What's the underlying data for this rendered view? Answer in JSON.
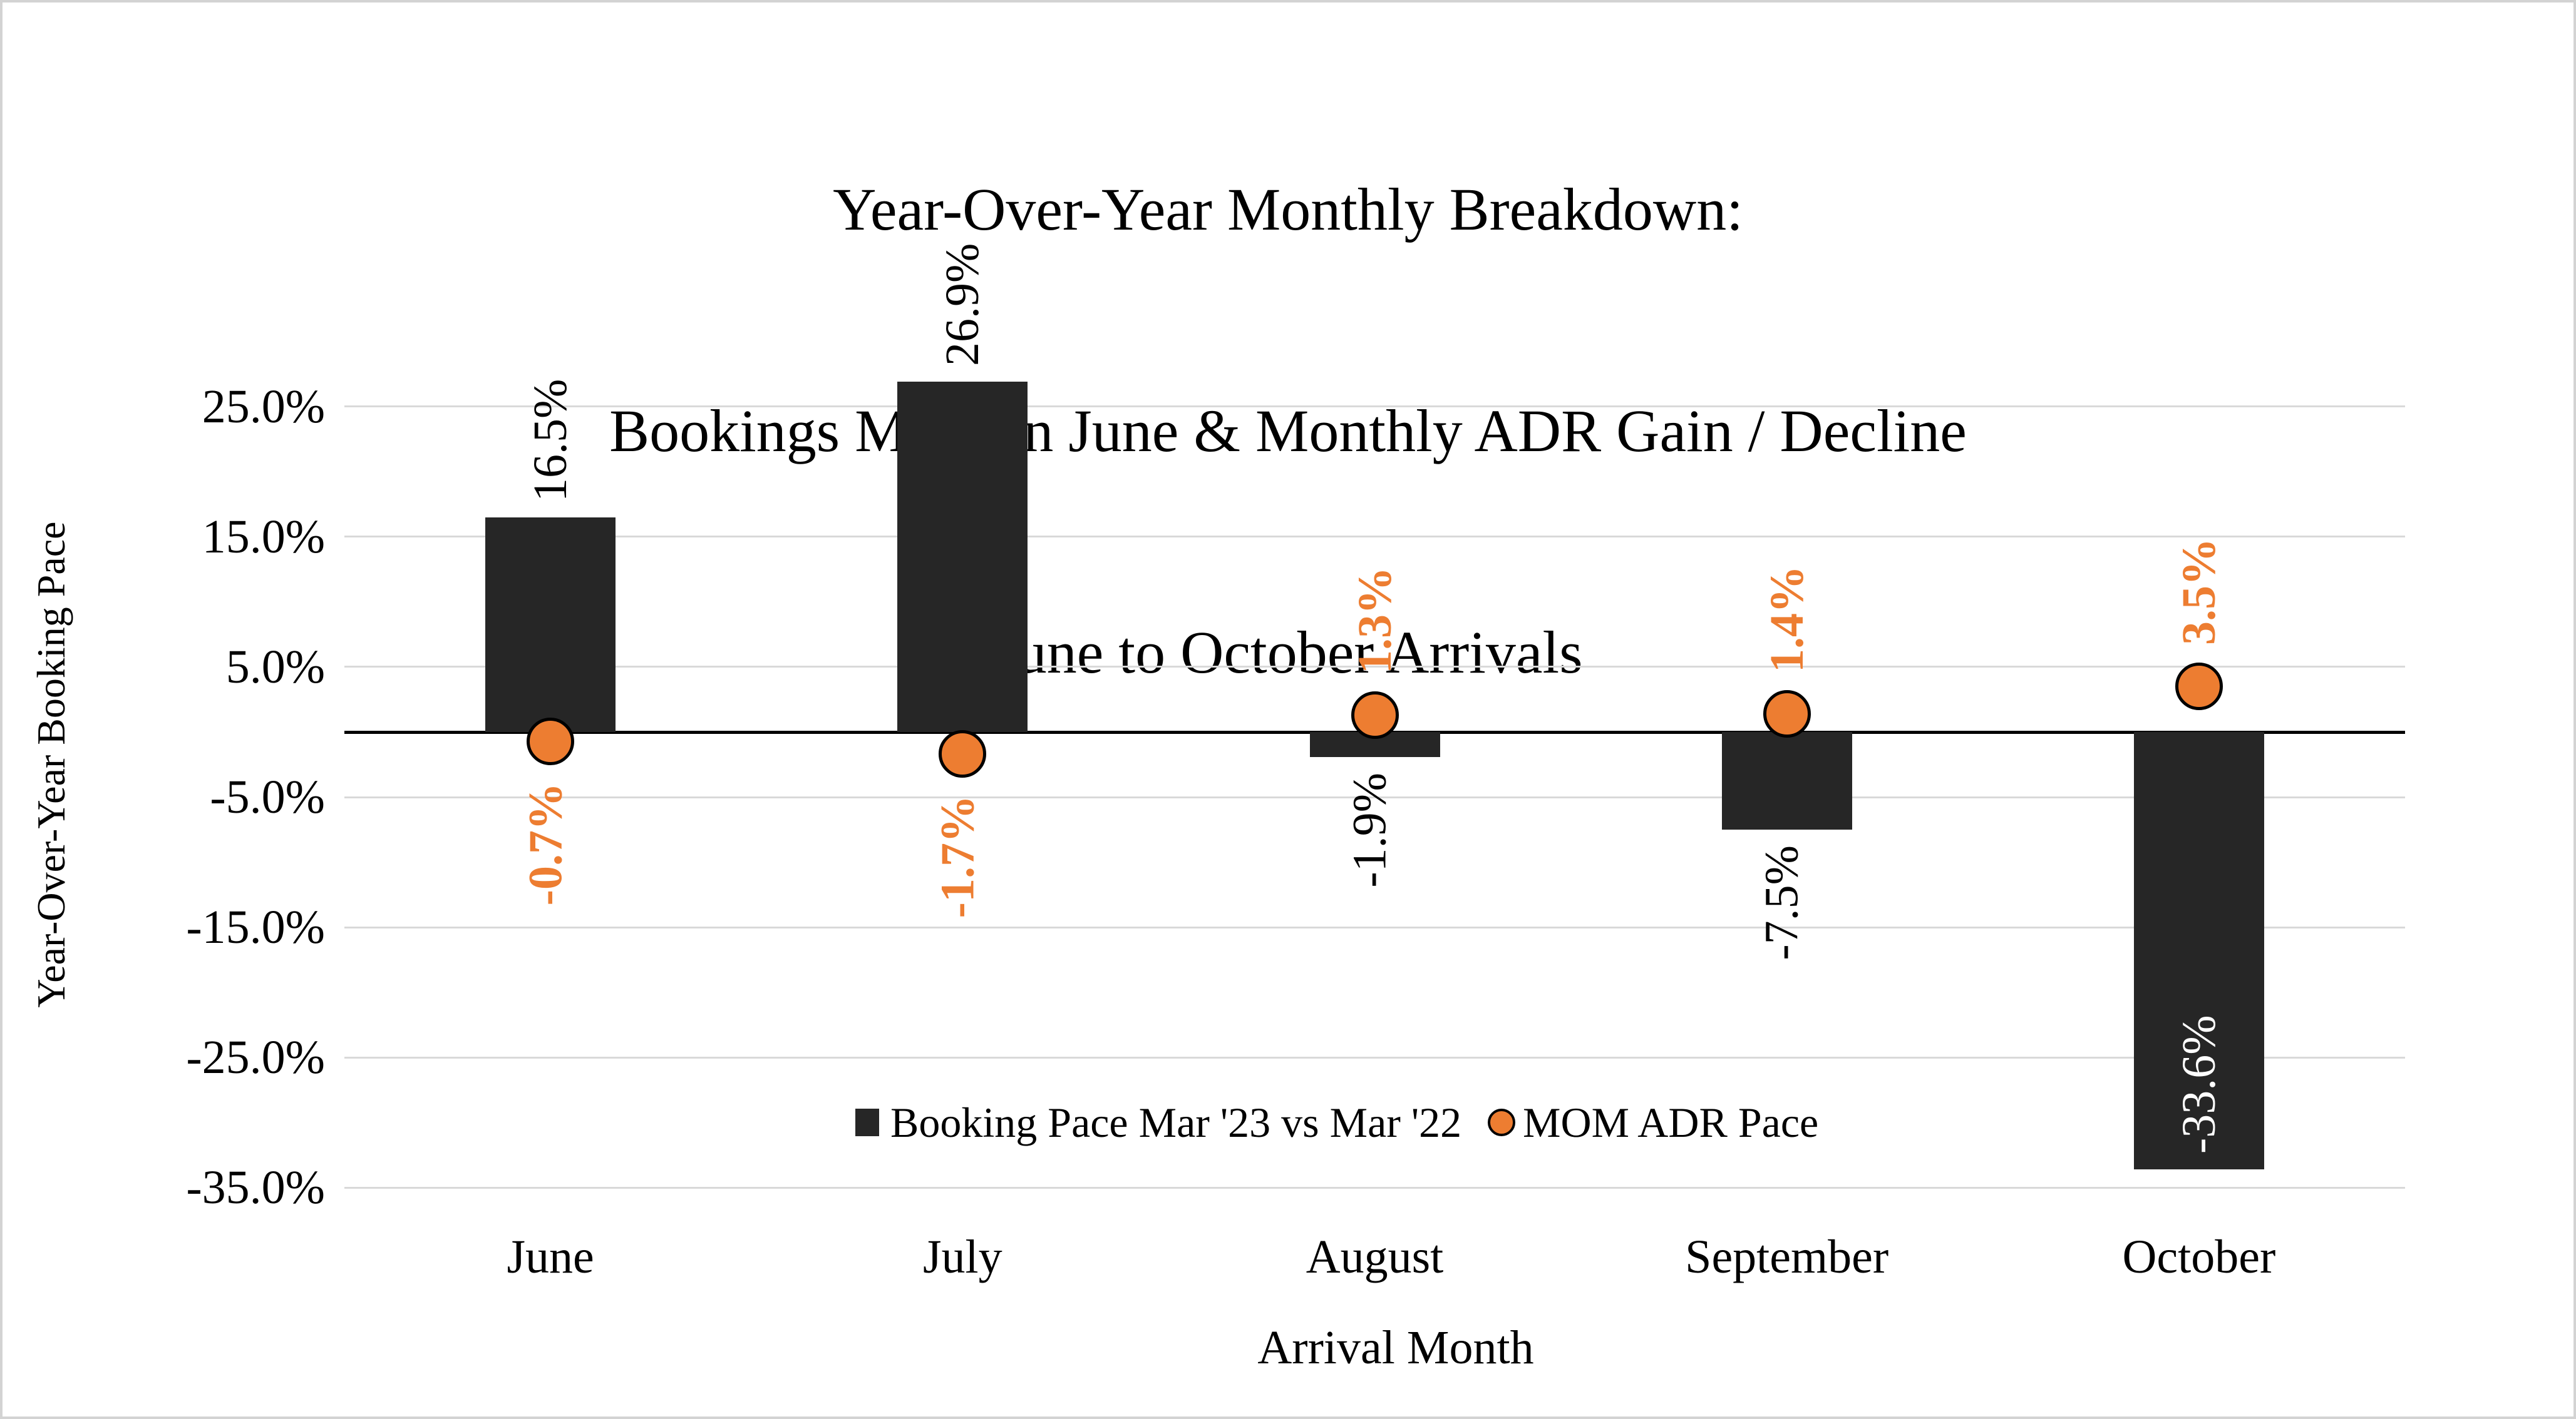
{
  "title": {
    "line1": "Year-Over-Year Monthly Breakdown:",
    "line2": "Bookings Made in June & Monthly ADR Gain / Decline",
    "line3": "June to October Arrivals"
  },
  "y_axis": {
    "title": "Year-Over-Year  Booking Pace",
    "ticks": [
      {
        "value": 25,
        "label": "25.0%"
      },
      {
        "value": 15,
        "label": "15.0%"
      },
      {
        "value": 5,
        "label": "5.0%"
      },
      {
        "value": -5,
        "label": "-5.0%"
      },
      {
        "value": -15,
        "label": "-15.0%"
      },
      {
        "value": -25,
        "label": "-25.0%"
      },
      {
        "value": -35,
        "label": "-35.0%"
      }
    ]
  },
  "x_axis": {
    "title": "Arrival Month",
    "categories": [
      "June",
      "July",
      "August",
      "September",
      "October"
    ]
  },
  "legend": {
    "items": [
      {
        "marker": "bar-swatch",
        "label": "Booking Pace Mar '23 vs Mar '22"
      },
      {
        "marker": "dot-swatch",
        "label": "MOM ADR Pace"
      }
    ]
  },
  "colors": {
    "bar": "#262626",
    "dot_fill": "#ED7D31",
    "dot_stroke": "#000000",
    "grid": "#d9d9d9",
    "zero_line": "#000000",
    "bar_label": "#000000",
    "bar_label_inside": "#ffffff",
    "dot_label": "#ED7D31"
  },
  "chart_data": {
    "type": "bar",
    "title": "Year-Over-Year Monthly Breakdown: Bookings Made in June & Monthly ADR Gain / Decline — June to October Arrivals",
    "xlabel": "Arrival Month",
    "ylabel": "Year-Over-Year  Booking Pace",
    "categories": [
      "June",
      "July",
      "August",
      "September",
      "October"
    ],
    "series": [
      {
        "name": "Booking Pace Mar '23 vs Mar '22",
        "type": "bar",
        "values": [
          16.5,
          26.9,
          -1.9,
          -7.5,
          -33.6
        ],
        "labels": [
          "16.5%",
          "26.9%",
          "-1.9%",
          "-7.5%",
          "-33.6%"
        ]
      },
      {
        "name": "MOM ADR Pace",
        "type": "point",
        "values": [
          -0.7,
          -1.7,
          1.3,
          1.4,
          3.5
        ],
        "labels": [
          "-0.7%",
          "-1.7%",
          "1.3%",
          "1.4%",
          "3.5%"
        ]
      }
    ],
    "ylim": [
      -35,
      30
    ],
    "yticks": [
      25,
      15,
      5,
      -5,
      -15,
      -25,
      -35
    ],
    "grid": "horizontal",
    "legend_position": "inside-bottom"
  }
}
